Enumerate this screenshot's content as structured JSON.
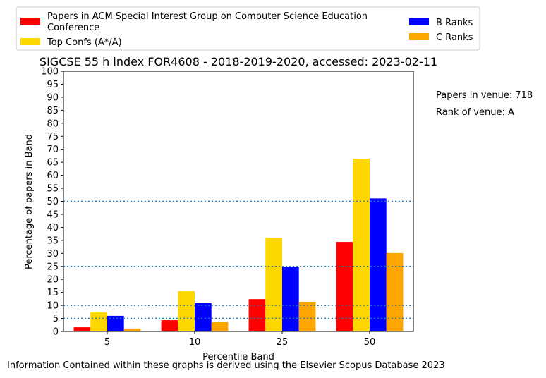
{
  "chart_data": {
    "type": "bar",
    "title": "SIGCSE 55 h index FOR4608 - 2018-2019-2020, accessed: 2023-02-11",
    "xlabel": "Percentile Band",
    "ylabel": "Percentage of papers in Band",
    "categories": [
      "5",
      "10",
      "25",
      "50"
    ],
    "ylim": [
      0,
      100
    ],
    "yticks": [
      0,
      5,
      10,
      15,
      20,
      25,
      30,
      35,
      40,
      45,
      50,
      55,
      60,
      65,
      70,
      75,
      80,
      85,
      90,
      95,
      100
    ],
    "reference_lines": [
      5,
      10,
      25,
      50
    ],
    "legend_placement": "top",
    "series": [
      {
        "name": "Papers in ACM Special Interest Group on Computer Science Education Conference",
        "color": "#ff0000",
        "values": [
          1.6,
          4.3,
          12.4,
          34.4
        ]
      },
      {
        "name": "Top Confs (A*/A)",
        "color": "#ffd700",
        "values": [
          7.3,
          15.5,
          36.0,
          66.4
        ]
      },
      {
        "name": "B Ranks",
        "color": "#0000ff",
        "values": [
          6.0,
          10.9,
          24.9,
          51.1
        ]
      },
      {
        "name": "C Ranks",
        "color": "#ffa500",
        "values": [
          1.1,
          3.6,
          11.4,
          30.1
        ]
      }
    ],
    "legend_lines": {
      "series0": [
        "Papers in ACM Special Interest Group on Computer Science Education",
        "Conference"
      ]
    }
  },
  "annotations": {
    "papers_in_venue": "Papers in venue: 718",
    "rank_of_venue": "Rank of venue: A"
  },
  "footer": "Information Contained within these graphs is derived using the Elsevier Scopus Database 2023",
  "colors": {
    "reference_line": "#1f77b4"
  }
}
